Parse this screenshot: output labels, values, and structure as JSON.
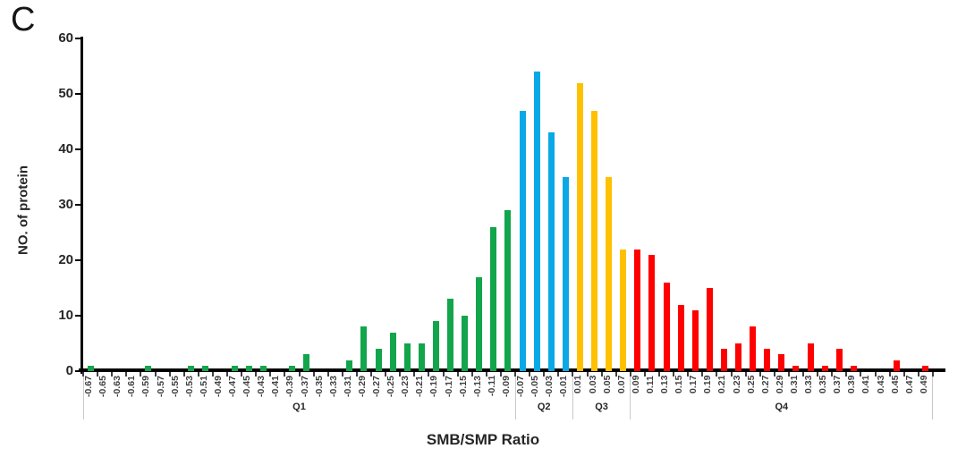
{
  "panel_label": "C",
  "chart_data": {
    "type": "bar",
    "title": "",
    "xlabel": "SMB/SMP Ratio",
    "ylabel": "NO. of protein",
    "ylim": [
      0,
      60
    ],
    "y_ticks": [
      0,
      10,
      20,
      30,
      40,
      50,
      60
    ],
    "grid": false,
    "legend": "none",
    "x_tick_label_rotation_deg": 90,
    "categories": [
      "-0.67",
      "-0.65",
      "-0.63",
      "-0.61",
      "-0.59",
      "-0.57",
      "-0.55",
      "-0.53",
      "-0.51",
      "-0.49",
      "-0.47",
      "-0.45",
      "-0.43",
      "-0.41",
      "-0.39",
      "-0.37",
      "-0.35",
      "-0.33",
      "-0.31",
      "-0.29",
      "-0.27",
      "-0.25",
      "-0.23",
      "-0.21",
      "-0.19",
      "-0.17",
      "-0.15",
      "-0.13",
      "-0.11",
      "-0.09",
      "-0.07",
      "-0.05",
      "-0.03",
      "-0.01",
      "0.01",
      "0.03",
      "0.05",
      "0.07",
      "0.09",
      "0.11",
      "0.13",
      "0.15",
      "0.17",
      "0.19",
      "0.21",
      "0.23",
      "0.25",
      "0.27",
      "0.29",
      "0.31",
      "0.33",
      "0.35",
      "0.37",
      "0.39",
      "0.41",
      "0.43",
      "0.45",
      "0.47",
      "0.49"
    ],
    "values": [
      1,
      0,
      0,
      0,
      1,
      0,
      0,
      1,
      1,
      0,
      1,
      1,
      1,
      0,
      1,
      3,
      0,
      0,
      2,
      8,
      4,
      7,
      5,
      5,
      9,
      13,
      10,
      17,
      26,
      29,
      47,
      54,
      43,
      35,
      52,
      47,
      35,
      22,
      22,
      21,
      16,
      12,
      11,
      15,
      4,
      5,
      8,
      4,
      3,
      1,
      5,
      1,
      4,
      1,
      0,
      0,
      2,
      0,
      1
    ],
    "groups": [
      {
        "label": "Q1",
        "start_index": 0,
        "end_index": 29,
        "color": "#12A54B"
      },
      {
        "label": "Q2",
        "start_index": 30,
        "end_index": 33,
        "color": "#0AA8E6"
      },
      {
        "label": "Q3",
        "start_index": 34,
        "end_index": 37,
        "color": "#FFC000"
      },
      {
        "label": "Q4",
        "start_index": 38,
        "end_index": 58,
        "color": "#FF0000"
      }
    ]
  }
}
